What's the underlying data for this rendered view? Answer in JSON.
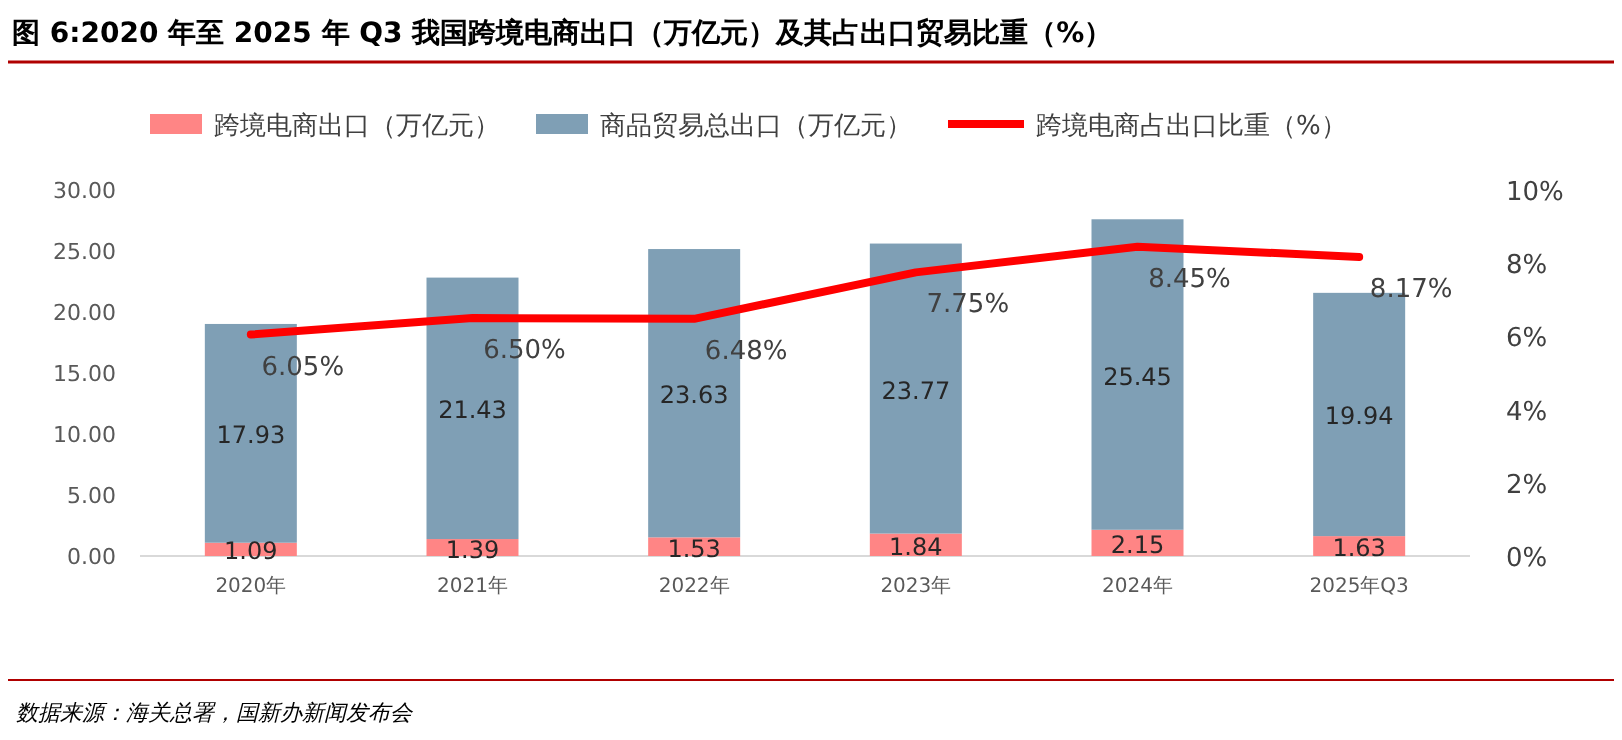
{
  "chart_data": {
    "type": "bar",
    "title": "图 6:2020 年至 2025 年 Q3 我国跨境电商出口（万亿元）及其占出口贸易比重（%）",
    "categories": [
      "2020年",
      "2021年",
      "2022年",
      "2023年",
      "2024年",
      "2025年Q3"
    ],
    "stacked": true,
    "legend": "top",
    "series": [
      {
        "name": "跨境电商出口（万亿元）",
        "color": "#ff8585",
        "values": [
          1.09,
          1.39,
          1.53,
          1.84,
          2.15,
          1.63
        ],
        "value_labels": [
          "1.09",
          "1.39",
          "1.53",
          "1.84",
          "2.15",
          "1.63"
        ]
      },
      {
        "name": "商品贸易总出口（万亿元）",
        "color": "#7f9fb5",
        "values": [
          17.93,
          21.43,
          23.63,
          23.77,
          25.45,
          19.94
        ],
        "value_labels": [
          "17.93",
          "21.43",
          "23.63",
          "23.77",
          "25.45",
          "19.94"
        ]
      },
      {
        "name": "跨境电商占出口比重（%）",
        "color": "#ff0000",
        "type": "line",
        "axis": "y2",
        "values": [
          6.05,
          6.5,
          6.48,
          7.75,
          8.45,
          8.17
        ],
        "value_labels": [
          "6.05%",
          "6.50%",
          "6.48%",
          "7.75%",
          "8.45%",
          "8.17%"
        ]
      }
    ],
    "ylim": [
      0,
      30
    ],
    "yticks": [
      {
        "value": 0,
        "label": "0.00"
      },
      {
        "value": 5,
        "label": "5.00"
      },
      {
        "value": 10,
        "label": "10.00"
      },
      {
        "value": 15,
        "label": "15.00"
      },
      {
        "value": 20,
        "label": "20.00"
      },
      {
        "value": 25,
        "label": "25.00"
      },
      {
        "value": 30,
        "label": "30.00"
      }
    ],
    "y2lim": [
      0,
      10
    ],
    "y2ticks": [
      {
        "value": 0,
        "label": "0%"
      },
      {
        "value": 2,
        "label": "2%"
      },
      {
        "value": 4,
        "label": "4%"
      },
      {
        "value": 6,
        "label": "6%"
      },
      {
        "value": 8,
        "label": "8%"
      },
      {
        "value": 10,
        "label": "10%"
      }
    ],
    "annotations": [
      "数据来源：海关总署，国新办新闻发布会"
    ]
  }
}
